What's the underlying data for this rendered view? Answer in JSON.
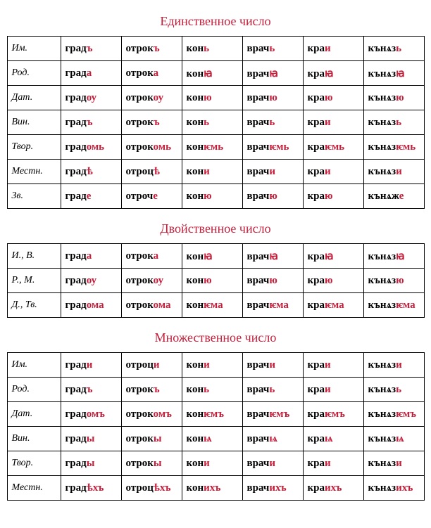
{
  "title_color": "#c41e3a",
  "ending_color": "#c41e3a",
  "stem_color": "#000000",
  "sections": [
    {
      "title": "Единственное число",
      "rows": [
        {
          "label": "Им.",
          "cells": [
            [
              "град",
              "ъ"
            ],
            [
              "отрок",
              "ъ"
            ],
            [
              "кон",
              "ь"
            ],
            [
              "врач",
              "ь"
            ],
            [
              "кра",
              "и"
            ],
            [
              "кънѧз",
              "ь"
            ]
          ]
        },
        {
          "label": "Род.",
          "cells": [
            [
              "град",
              "а"
            ],
            [
              "отрок",
              "а"
            ],
            [
              "кон",
              "ꙗ"
            ],
            [
              "врач",
              "ꙗ"
            ],
            [
              "кра",
              "ꙗ"
            ],
            [
              "кънѧз",
              "ꙗ"
            ]
          ]
        },
        {
          "label": "Дат.",
          "cells": [
            [
              "град",
              "оу"
            ],
            [
              "отрок",
              "оу"
            ],
            [
              "кон",
              "ю"
            ],
            [
              "врач",
              "ю"
            ],
            [
              "кра",
              "ю"
            ],
            [
              "кънѧз",
              "ю"
            ]
          ]
        },
        {
          "label": "Вин.",
          "cells": [
            [
              "град",
              "ъ"
            ],
            [
              "отрок",
              "ъ"
            ],
            [
              "кон",
              "ь"
            ],
            [
              "врач",
              "ь"
            ],
            [
              "кра",
              "и"
            ],
            [
              "кънѧз",
              "ь"
            ]
          ]
        },
        {
          "label": "Твор.",
          "cells": [
            [
              "град",
              "омь"
            ],
            [
              "отрок",
              "омь"
            ],
            [
              "кон",
              "ѥмь"
            ],
            [
              "врач",
              "ѥмь"
            ],
            [
              "кра",
              "ѥмь"
            ],
            [
              "кънѧз",
              "ѥмь"
            ]
          ]
        },
        {
          "label": "Местн.",
          "cells": [
            [
              "град",
              "ѣ"
            ],
            [
              "отроц",
              "ѣ"
            ],
            [
              "кон",
              "и"
            ],
            [
              "врач",
              "и"
            ],
            [
              "кра",
              "и"
            ],
            [
              "кънѧз",
              "и"
            ]
          ]
        },
        {
          "label": "Зв.",
          "cells": [
            [
              "град",
              "е"
            ],
            [
              "отроч",
              "е"
            ],
            [
              "кон",
              "ю"
            ],
            [
              "врач",
              "ю"
            ],
            [
              "кра",
              "ю"
            ],
            [
              "кънѧж",
              "е"
            ]
          ]
        }
      ]
    },
    {
      "title": "Двойственное  число",
      "rows": [
        {
          "label": "И.,  В.",
          "cells": [
            [
              "град",
              "а"
            ],
            [
              "отрок",
              "а"
            ],
            [
              "кон",
              "ꙗ"
            ],
            [
              "врач",
              "ꙗ"
            ],
            [
              "кра",
              "ꙗ"
            ],
            [
              "кънѧз",
              "ꙗ"
            ]
          ]
        },
        {
          "label": "Р., М.",
          "cells": [
            [
              "град",
              "оу"
            ],
            [
              "отрок",
              "оу"
            ],
            [
              "кон",
              "ю"
            ],
            [
              "врач",
              "ю"
            ],
            [
              "кра",
              "ю"
            ],
            [
              "кънѧз",
              "ю"
            ]
          ]
        },
        {
          "label": "Д., Тв.",
          "cells": [
            [
              "град",
              "ома"
            ],
            [
              "отрок",
              "ома"
            ],
            [
              "кон",
              "ѥма"
            ],
            [
              "врач",
              "ѥма"
            ],
            [
              "кра",
              "ѥма"
            ],
            [
              "кънѧз",
              "ѥма"
            ]
          ]
        }
      ]
    },
    {
      "title": "Множественное число",
      "rows": [
        {
          "label": "Им.",
          "cells": [
            [
              "град",
              "и"
            ],
            [
              "отроц",
              "и"
            ],
            [
              "кон",
              "и"
            ],
            [
              "врач",
              "и"
            ],
            [
              "кра",
              "и"
            ],
            [
              "кънѧз",
              "и"
            ]
          ]
        },
        {
          "label": "Род.",
          "cells": [
            [
              "град",
              "ъ"
            ],
            [
              "отрок",
              "ъ"
            ],
            [
              "кон",
              "ь"
            ],
            [
              "врач",
              "ь"
            ],
            [
              "кра",
              "и"
            ],
            [
              "кънѧз",
              "ь"
            ]
          ]
        },
        {
          "label": "Дат.",
          "cells": [
            [
              "град",
              "омъ"
            ],
            [
              "отрок",
              "омъ"
            ],
            [
              "кон",
              "ѥмъ"
            ],
            [
              "врач",
              "ѥмъ"
            ],
            [
              "кра",
              "ѥмъ"
            ],
            [
              "кънѧз",
              "ѥмъ"
            ]
          ]
        },
        {
          "label": "Вин.",
          "cells": [
            [
              "град",
              "ы"
            ],
            [
              "отрок",
              "ы"
            ],
            [
              "кон",
              "ѩ"
            ],
            [
              "врач",
              "ѩ"
            ],
            [
              "кра",
              "ѩ"
            ],
            [
              "кънѧз",
              "ѩ"
            ]
          ]
        },
        {
          "label": "Твор.",
          "cells": [
            [
              "град",
              "ы"
            ],
            [
              "отрок",
              "ы"
            ],
            [
              "кон",
              "и"
            ],
            [
              "врач",
              "и"
            ],
            [
              "кра",
              "и"
            ],
            [
              "кънѧз",
              "и"
            ]
          ]
        },
        {
          "label": "Местн.",
          "cells": [
            [
              "град",
              "ѣхъ"
            ],
            [
              "отроц",
              "ѣхъ"
            ],
            [
              "кон",
              "ихъ"
            ],
            [
              "врач",
              "ихъ"
            ],
            [
              "кра",
              "ихъ"
            ],
            [
              "кънѧз",
              "ихъ"
            ]
          ]
        }
      ]
    }
  ]
}
